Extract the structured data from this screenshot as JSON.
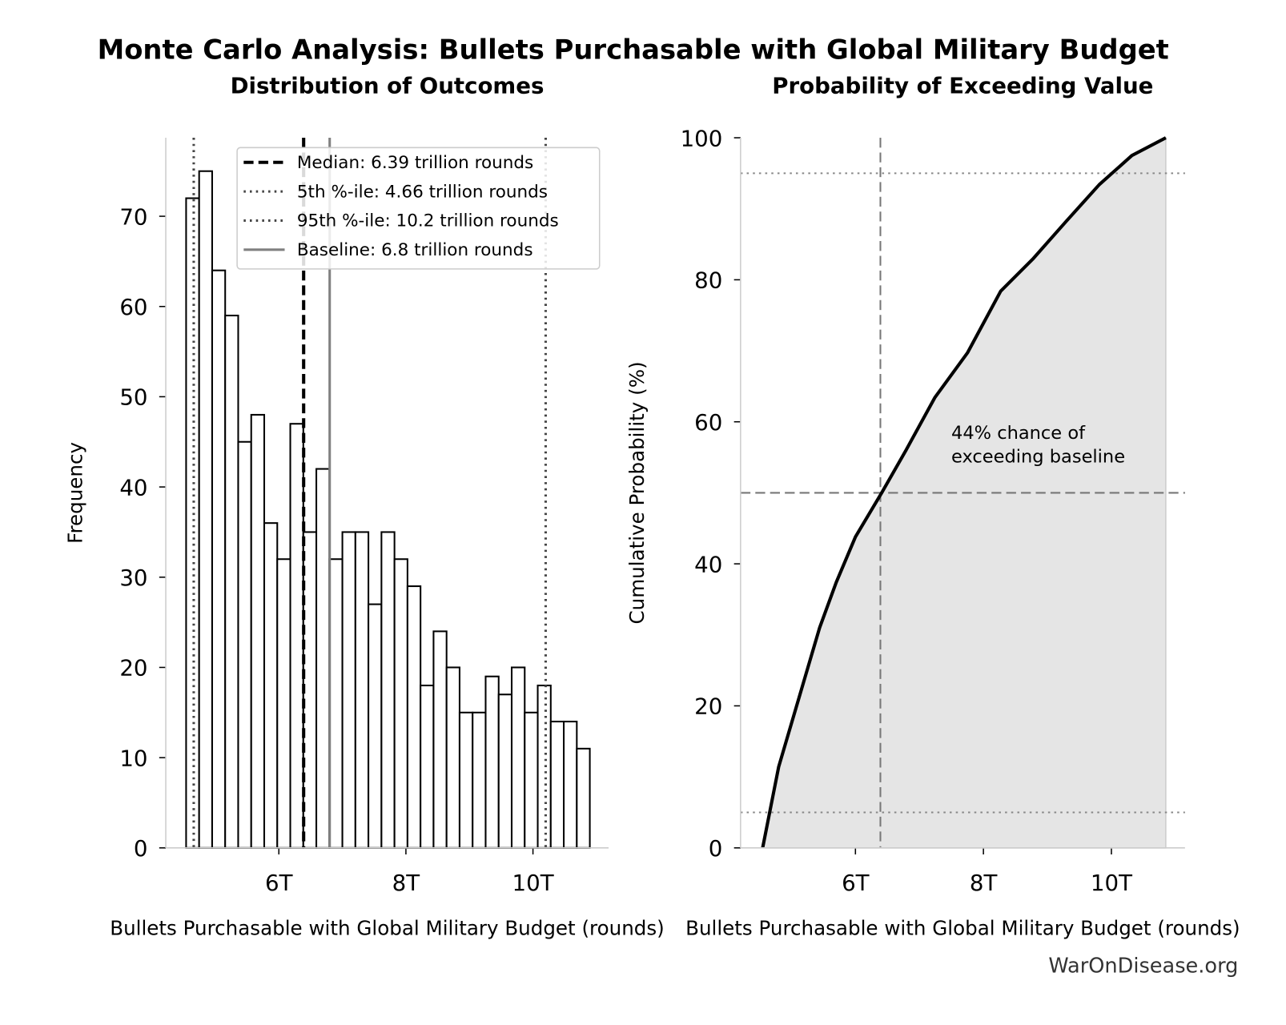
{
  "title": "Monte Carlo Analysis: Bullets Purchasable with Global Military Budget",
  "footer": "WarOnDisease.org",
  "chart_data": [
    {
      "type": "histogram",
      "title": "Distribution of Outcomes",
      "xlabel": "Bullets Purchasable with Global Military Budget (rounds)",
      "ylabel": "Frequency",
      "bins": [
        4540000000000,
        4745000000000,
        4950000000000,
        5155000000000,
        5360000000000,
        5565000000000,
        5770000000000,
        5975000000000,
        6180000000000,
        6385000000000,
        6590000000000,
        6795000000000,
        7000000000000,
        7205000000000,
        7410000000000,
        7615000000000,
        7820000000000,
        8025000000000,
        8230000000000,
        8435000000000,
        8640000000000,
        8845000000000,
        9050000000000,
        9255000000000,
        9460000000000,
        9665000000000,
        9870000000000,
        10075000000000,
        10280000000000,
        10485000000000,
        10690000000000,
        10895000000000
      ],
      "values": [
        72,
        75,
        64,
        59,
        45,
        48,
        36,
        32,
        47,
        35,
        42,
        32,
        35,
        35,
        27,
        35,
        32,
        29,
        18,
        24,
        20,
        15,
        15,
        19,
        17,
        20,
        15,
        18,
        14,
        14,
        11
      ],
      "color": "#ffffff",
      "edgecolor": "#000000",
      "xlim": [
        4220000000000,
        11190000000000
      ],
      "xticks": [
        {
          "value": 6000000000000,
          "label": "6T"
        },
        {
          "value": 8000000000000,
          "label": "8T"
        },
        {
          "value": 10000000000000,
          "label": "10T"
        }
      ],
      "ylim": [
        0,
        78.7
      ],
      "yticks": [
        0,
        10,
        20,
        30,
        40,
        50,
        60,
        70
      ],
      "legend": "upper right",
      "lines": [
        {
          "name": "Median: 6.39 trillion rounds",
          "value": 6390000000000,
          "color": "#000000",
          "style": "dashed"
        },
        {
          "name": "5th %-ile: 4.66 trillion rounds",
          "value": 4660000000000,
          "color": "#444444",
          "style": "dotted"
        },
        {
          "name": "95th %-ile: 10.2 trillion rounds",
          "value": 10200000000000,
          "color": "#444444",
          "style": "dotted"
        },
        {
          "name": "Baseline: 6.8 trillion rounds",
          "value": 6800000000000,
          "color": "#808080",
          "style": "solid"
        }
      ]
    },
    {
      "type": "line",
      "title": "Probability of Exceeding Value",
      "xlabel": "Bullets Purchasable with Global Military Budget (rounds)",
      "ylabel": "Cumulative Probability (%)",
      "x": [
        4550000000000,
        4800000000000,
        5120000000000,
        5440000000000,
        5700000000000,
        6000000000000,
        6410000000000,
        6790000000000,
        7240000000000,
        7750000000000,
        8270000000000,
        8780000000000,
        9290000000000,
        9810000000000,
        10320000000000,
        10850000000000
      ],
      "values": [
        0,
        11.4,
        21.2,
        31,
        37.4,
        43.8,
        50,
        56,
        63.4,
        69.7,
        78.4,
        83,
        88.2,
        93.4,
        97.5,
        100
      ],
      "color": "#000000",
      "fill": "#e5e5e5",
      "xlim": [
        4205000000000,
        11150000000000
      ],
      "xticks": [
        {
          "value": 6000000000000,
          "label": "6T"
        },
        {
          "value": 8000000000000,
          "label": "8T"
        },
        {
          "value": 10000000000000,
          "label": "10T"
        }
      ],
      "ylim": [
        0,
        100
      ],
      "yticks": [
        0,
        20,
        40,
        60,
        80,
        100
      ],
      "hlines": [
        {
          "value": 5,
          "style": "dotted"
        },
        {
          "value": 95,
          "style": "dotted"
        },
        {
          "value": 50,
          "style": "dashed"
        }
      ],
      "vlines": [
        {
          "value": 6390000000000,
          "style": "dashed"
        }
      ],
      "annotation": "44% chance of\nexceeding baseline"
    }
  ]
}
